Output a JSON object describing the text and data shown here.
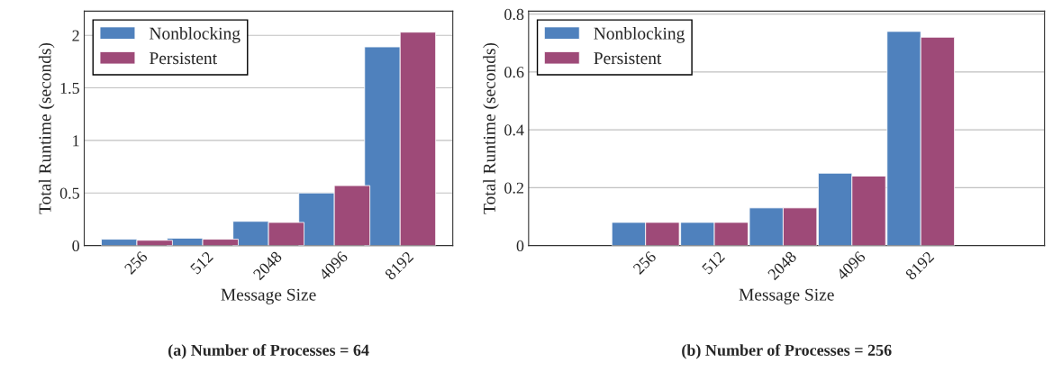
{
  "chart_data": [
    {
      "type": "bar",
      "title": "(a) Number of Processes = 64",
      "xlabel": "Message Size",
      "ylabel": "Total Runtime (seconds)",
      "categories": [
        "256",
        "512",
        "2048",
        "4096",
        "8192"
      ],
      "series": [
        {
          "name": "Nonblocking",
          "color": "#4f81bd",
          "values": [
            0.06,
            0.07,
            0.23,
            0.5,
            1.89
          ]
        },
        {
          "name": "Persistent",
          "color": "#9e4a78",
          "values": [
            0.05,
            0.06,
            0.22,
            0.57,
            2.03
          ]
        }
      ],
      "ylim": [
        0,
        2.23
      ],
      "yticks": [
        0,
        0.5,
        1,
        1.5,
        2
      ],
      "grid": "y",
      "legend": "top left"
    },
    {
      "type": "bar",
      "title": "(b) Number of Processes = 256",
      "xlabel": "Message Size",
      "ylabel": "Total Runtime (seconds)",
      "categories": [
        "256",
        "512",
        "2048",
        "4096",
        "8192"
      ],
      "series": [
        {
          "name": "Nonblocking",
          "color": "#4f81bd",
          "values": [
            0.08,
            0.08,
            0.13,
            0.25,
            0.74
          ]
        },
        {
          "name": "Persistent",
          "color": "#9e4a78",
          "values": [
            0.08,
            0.08,
            0.13,
            0.24,
            0.72
          ]
        }
      ],
      "ylim": [
        0,
        0.81
      ],
      "yticks": [
        0,
        0.2,
        0.4,
        0.6,
        0.8
      ],
      "grid": "y",
      "legend": "top left"
    }
  ]
}
